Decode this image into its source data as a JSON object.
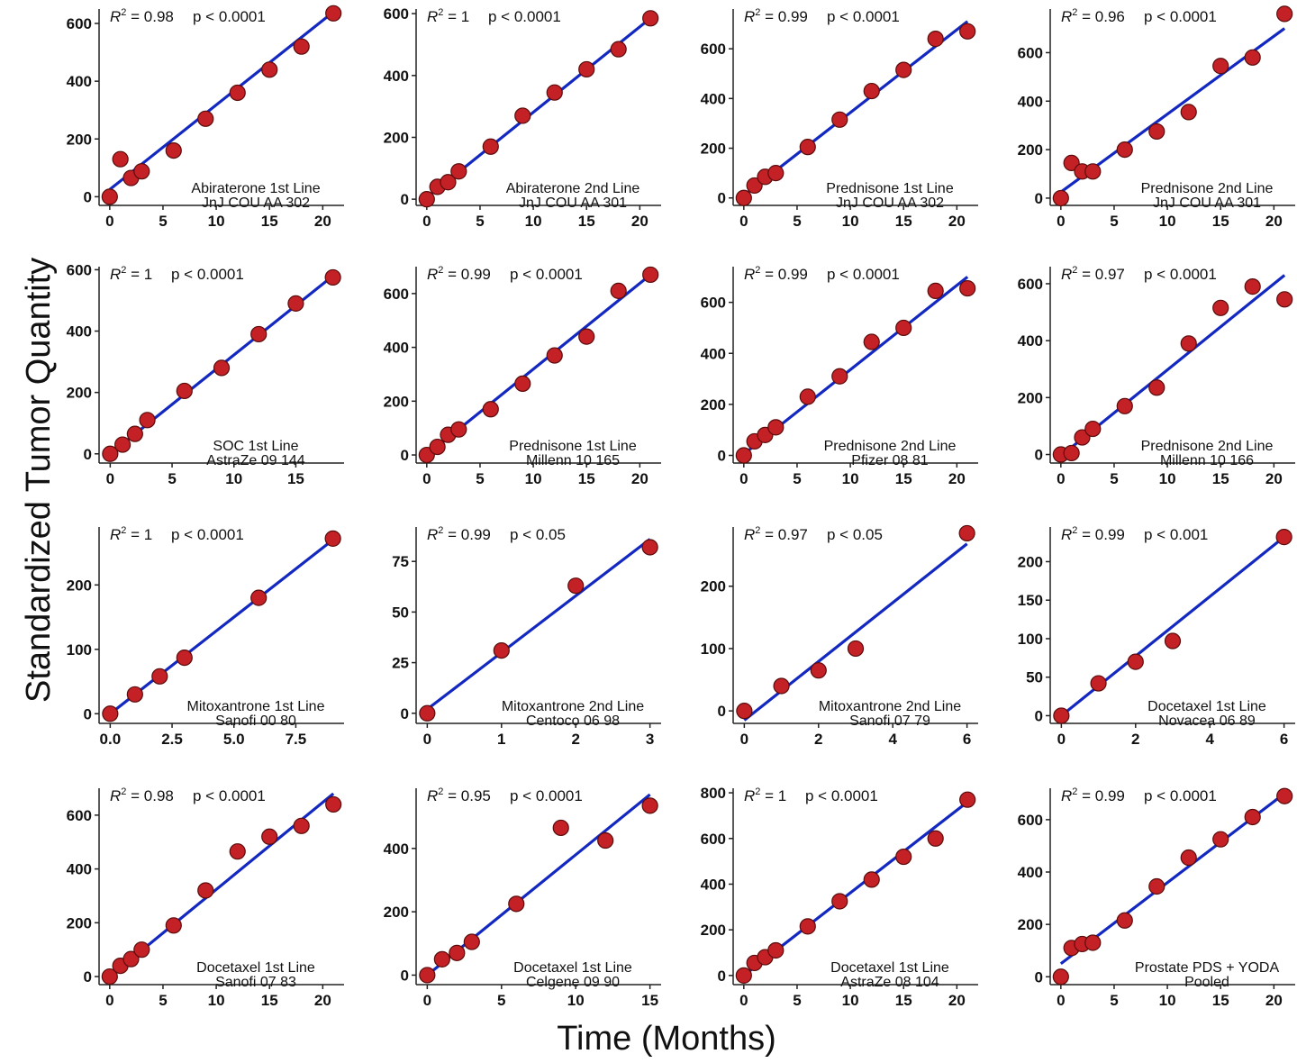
{
  "figure": {
    "ylabel": "Standardized Tumor Quantity",
    "xlabel": "Time (Months)",
    "colors": {
      "line": "#1328c0",
      "point_fill": "#c42126",
      "point_edge": "#5a0c0c",
      "axis": "#222222"
    }
  },
  "chart_data": [
    {
      "type": "scatter",
      "title": "Abiraterone 1st Line",
      "subtitle": "JnJ COU AA 302",
      "r2": "0.98",
      "p": "p < 0.0001",
      "xlim": [
        -1,
        22
      ],
      "ylim": [
        -30,
        650
      ],
      "xticks": [
        0,
        5,
        10,
        15,
        20
      ],
      "xtick_labels": [
        "0",
        "5",
        "10",
        "15",
        "20"
      ],
      "yticks": [
        0,
        200,
        400,
        600
      ],
      "ytick_labels": [
        "0",
        "200",
        "400",
        "600"
      ],
      "points": [
        [
          0,
          0
        ],
        [
          1,
          130
        ],
        [
          2,
          65
        ],
        [
          3,
          88
        ],
        [
          6,
          160
        ],
        [
          9,
          270
        ],
        [
          12,
          360
        ],
        [
          15,
          440
        ],
        [
          18,
          520
        ],
        [
          21,
          635
        ]
      ],
      "fit": [
        [
          0,
          25
        ],
        [
          21,
          640
        ]
      ]
    },
    {
      "type": "scatter",
      "title": "Abiraterone 2nd Line",
      "subtitle": "JnJ COU AA 301",
      "r2": "1",
      "p": "p < 0.0001",
      "xlim": [
        -1,
        22
      ],
      "ylim": [
        -20,
        615
      ],
      "xticks": [
        0,
        5,
        10,
        15,
        20
      ],
      "xtick_labels": [
        "0",
        "5",
        "10",
        "15",
        "20"
      ],
      "yticks": [
        0,
        200,
        400,
        600
      ],
      "ytick_labels": [
        "0",
        "200",
        "400",
        "600"
      ],
      "points": [
        [
          0,
          0
        ],
        [
          1,
          40
        ],
        [
          2,
          55
        ],
        [
          3,
          90
        ],
        [
          6,
          170
        ],
        [
          9,
          270
        ],
        [
          12,
          345
        ],
        [
          15,
          420
        ],
        [
          18,
          485
        ],
        [
          21,
          585
        ]
      ],
      "fit": [
        [
          0,
          5
        ],
        [
          21,
          585
        ]
      ]
    },
    {
      "type": "scatter",
      "title": "Prednisone 1st Line",
      "subtitle": "JnJ COU AA 302",
      "r2": "0.99",
      "p": "p < 0.0001",
      "xlim": [
        -1,
        22
      ],
      "ylim": [
        -30,
        760
      ],
      "xticks": [
        0,
        5,
        10,
        15,
        20
      ],
      "xtick_labels": [
        "0",
        "5",
        "10",
        "15",
        "20"
      ],
      "yticks": [
        0,
        200,
        400,
        600
      ],
      "ytick_labels": [
        "0",
        "200",
        "400",
        "600"
      ],
      "points": [
        [
          0,
          0
        ],
        [
          1,
          50
        ],
        [
          2,
          85
        ],
        [
          3,
          100
        ],
        [
          6,
          205
        ],
        [
          9,
          315
        ],
        [
          12,
          430
        ],
        [
          15,
          515
        ],
        [
          18,
          640
        ],
        [
          21,
          670
        ]
      ],
      "fit": [
        [
          0,
          10
        ],
        [
          21,
          710
        ]
      ]
    },
    {
      "type": "scatter",
      "title": "Prednisone 2nd Line",
      "subtitle": "JnJ COU AA 301",
      "r2": "0.96",
      "p": "p < 0.0001",
      "xlim": [
        -1,
        22
      ],
      "ylim": [
        -30,
        780
      ],
      "xticks": [
        0,
        5,
        10,
        15,
        20
      ],
      "xtick_labels": [
        "0",
        "5",
        "10",
        "15",
        "20"
      ],
      "yticks": [
        0,
        200,
        400,
        600
      ],
      "ytick_labels": [
        "0",
        "200",
        "400",
        "600"
      ],
      "points": [
        [
          0,
          0
        ],
        [
          1,
          145
        ],
        [
          2,
          110
        ],
        [
          3,
          110
        ],
        [
          6,
          200
        ],
        [
          9,
          275
        ],
        [
          12,
          355
        ],
        [
          15,
          545
        ],
        [
          18,
          580
        ],
        [
          21,
          760
        ]
      ],
      "fit": [
        [
          0,
          25
        ],
        [
          21,
          700
        ]
      ]
    },
    {
      "type": "scatter",
      "title": "SOC 1st Line",
      "subtitle": "AstraZe 09 144",
      "r2": "1",
      "p": "p < 0.0001",
      "xlim": [
        -0.9,
        18.9
      ],
      "ylim": [
        -30,
        610
      ],
      "xticks": [
        0,
        5,
        10,
        15
      ],
      "xtick_labels": [
        "0",
        "5",
        "10",
        "15"
      ],
      "yticks": [
        0,
        200,
        400,
        600
      ],
      "ytick_labels": [
        "0",
        "200",
        "400",
        "600"
      ],
      "points": [
        [
          0,
          0
        ],
        [
          1,
          30
        ],
        [
          2,
          65
        ],
        [
          3,
          110
        ],
        [
          6,
          205
        ],
        [
          9,
          280
        ],
        [
          12,
          390
        ],
        [
          15,
          490
        ],
        [
          18,
          575
        ]
      ],
      "fit": [
        [
          0,
          0
        ],
        [
          18,
          580
        ]
      ]
    },
    {
      "type": "scatter",
      "title": "Prednisone 1st Line",
      "subtitle": "Millenn 10 165",
      "r2": "0.99",
      "p": "p < 0.0001",
      "xlim": [
        -1,
        22
      ],
      "ylim": [
        -30,
        700
      ],
      "xticks": [
        0,
        5,
        10,
        15,
        20
      ],
      "xtick_labels": [
        "0",
        "5",
        "10",
        "15",
        "20"
      ],
      "yticks": [
        0,
        200,
        400,
        600
      ],
      "ytick_labels": [
        "0",
        "200",
        "400",
        "600"
      ],
      "points": [
        [
          0,
          0
        ],
        [
          1,
          30
        ],
        [
          2,
          75
        ],
        [
          3,
          95
        ],
        [
          6,
          170
        ],
        [
          9,
          265
        ],
        [
          12,
          370
        ],
        [
          15,
          440
        ],
        [
          18,
          610
        ],
        [
          21,
          670
        ]
      ],
      "fit": [
        [
          0,
          0
        ],
        [
          21,
          670
        ]
      ]
    },
    {
      "type": "scatter",
      "title": "Prednisone 2nd Line",
      "subtitle": "Pfizer 08 81",
      "r2": "0.99",
      "p": "p < 0.0001",
      "xlim": [
        -1,
        22
      ],
      "ylim": [
        -30,
        740
      ],
      "xticks": [
        0,
        5,
        10,
        15,
        20
      ],
      "xtick_labels": [
        "0",
        "5",
        "10",
        "15",
        "20"
      ],
      "yticks": [
        0,
        200,
        400,
        600
      ],
      "ytick_labels": [
        "0",
        "200",
        "400",
        "600"
      ],
      "points": [
        [
          0,
          0
        ],
        [
          1,
          55
        ],
        [
          2,
          80
        ],
        [
          3,
          110
        ],
        [
          6,
          230
        ],
        [
          9,
          310
        ],
        [
          12,
          445
        ],
        [
          15,
          500
        ],
        [
          18,
          645
        ],
        [
          21,
          655
        ]
      ],
      "fit": [
        [
          0,
          5
        ],
        [
          21,
          700
        ]
      ]
    },
    {
      "type": "scatter",
      "title": "Prednisone 2nd Line",
      "subtitle": "Millenn 10 166",
      "r2": "0.97",
      "p": "p < 0.0001",
      "xlim": [
        -1,
        22
      ],
      "ylim": [
        -30,
        660
      ],
      "xticks": [
        0,
        5,
        10,
        15,
        20
      ],
      "xtick_labels": [
        "0",
        "5",
        "10",
        "15",
        "20"
      ],
      "yticks": [
        0,
        200,
        400,
        600
      ],
      "ytick_labels": [
        "0",
        "200",
        "400",
        "600"
      ],
      "points": [
        [
          0,
          0
        ],
        [
          1,
          5
        ],
        [
          2,
          60
        ],
        [
          3,
          90
        ],
        [
          6,
          170
        ],
        [
          9,
          235
        ],
        [
          12,
          390
        ],
        [
          15,
          515
        ],
        [
          18,
          590
        ],
        [
          21,
          545
        ]
      ],
      "fit": [
        [
          0,
          -5
        ],
        [
          21,
          630
        ]
      ]
    },
    {
      "type": "scatter",
      "title": "Mitoxantrone 1st Line",
      "subtitle": "Sanofi 00 80",
      "r2": "1",
      "p": "p < 0.0001",
      "xlim": [
        -0.45,
        9.45
      ],
      "ylim": [
        -15,
        290
      ],
      "xticks": [
        0,
        2.5,
        5,
        7.5
      ],
      "xtick_labels": [
        "0.0",
        "2.5",
        "5.0",
        "7.5"
      ],
      "yticks": [
        0,
        100,
        200
      ],
      "ytick_labels": [
        "0",
        "100",
        "200"
      ],
      "points": [
        [
          0,
          0
        ],
        [
          1,
          30
        ],
        [
          2,
          58
        ],
        [
          3,
          87
        ],
        [
          6,
          180
        ],
        [
          9,
          272
        ]
      ],
      "fit": [
        [
          0,
          0
        ],
        [
          9,
          270
        ]
      ]
    },
    {
      "type": "scatter",
      "title": "Mitoxantrone 2nd Line",
      "subtitle": "Centoco 06 98",
      "r2": "0.99",
      "p": "p < 0.05",
      "xlim": [
        -0.15,
        3.15
      ],
      "ylim": [
        -5,
        92
      ],
      "xticks": [
        0,
        1,
        2,
        3
      ],
      "xtick_labels": [
        "0",
        "1",
        "2",
        "3"
      ],
      "yticks": [
        0,
        25,
        50,
        75
      ],
      "ytick_labels": [
        "0",
        "25",
        "50",
        "75"
      ],
      "points": [
        [
          0,
          0
        ],
        [
          1,
          31
        ],
        [
          2,
          63
        ],
        [
          3,
          82
        ]
      ],
      "fit": [
        [
          0,
          2
        ],
        [
          3,
          86
        ]
      ]
    },
    {
      "type": "scatter",
      "title": "Mitoxantrone 2nd Line",
      "subtitle": "Sanofi 07 79",
      "r2": "0.97",
      "p": "p < 0.05",
      "xlim": [
        -0.3,
        6.3
      ],
      "ylim": [
        -20,
        295
      ],
      "xticks": [
        0,
        2,
        4,
        6
      ],
      "xtick_labels": [
        "0",
        "2",
        "4",
        "6"
      ],
      "yticks": [
        0,
        100,
        200
      ],
      "ytick_labels": [
        "0",
        "100",
        "200"
      ],
      "points": [
        [
          0,
          0
        ],
        [
          1,
          40
        ],
        [
          2,
          65
        ],
        [
          3,
          100
        ],
        [
          6,
          285
        ]
      ],
      "fit": [
        [
          0,
          -15
        ],
        [
          6,
          268
        ]
      ]
    },
    {
      "type": "scatter",
      "title": "Docetaxel 1st Line",
      "subtitle": "Novacea 06 89",
      "r2": "0.99",
      "p": "p < 0.001",
      "xlim": [
        -0.3,
        6.3
      ],
      "ylim": [
        -10,
        245
      ],
      "xticks": [
        0,
        2,
        4,
        6
      ],
      "xtick_labels": [
        "0",
        "2",
        "4",
        "6"
      ],
      "yticks": [
        0,
        50,
        100,
        150,
        200
      ],
      "ytick_labels": [
        "0",
        "50",
        "100",
        "150",
        "200"
      ],
      "points": [
        [
          0,
          0
        ],
        [
          1,
          42
        ],
        [
          2,
          70
        ],
        [
          3,
          97
        ],
        [
          6,
          232
        ]
      ],
      "fit": [
        [
          0,
          0
        ],
        [
          6,
          232
        ]
      ]
    },
    {
      "type": "scatter",
      "title": "Docetaxel 1st Line",
      "subtitle": "Sanofi 07 83",
      "r2": "0.98",
      "p": "p < 0.0001",
      "xlim": [
        -1,
        22
      ],
      "ylim": [
        -30,
        700
      ],
      "xticks": [
        0,
        5,
        10,
        15,
        20
      ],
      "xtick_labels": [
        "0",
        "5",
        "10",
        "15",
        "20"
      ],
      "yticks": [
        0,
        200,
        400,
        600
      ],
      "ytick_labels": [
        "0",
        "200",
        "400",
        "600"
      ],
      "points": [
        [
          0,
          0
        ],
        [
          1,
          40
        ],
        [
          2,
          65
        ],
        [
          3,
          100
        ],
        [
          6,
          190
        ],
        [
          9,
          320
        ],
        [
          12,
          465
        ],
        [
          15,
          520
        ],
        [
          18,
          560
        ],
        [
          21,
          640
        ]
      ],
      "fit": [
        [
          0,
          0
        ],
        [
          21,
          680
        ]
      ]
    },
    {
      "type": "scatter",
      "title": "Docetaxel 1st Line",
      "subtitle": "Celgene 09 90",
      "r2": "0.95",
      "p": "p < 0.0001",
      "xlim": [
        -0.75,
        15.75
      ],
      "ylim": [
        -30,
        590
      ],
      "xticks": [
        0,
        5,
        10,
        15
      ],
      "xtick_labels": [
        "0",
        "5",
        "10",
        "15"
      ],
      "yticks": [
        0,
        200,
        400
      ],
      "ytick_labels": [
        "0",
        "200",
        "400"
      ],
      "points": [
        [
          0,
          0
        ],
        [
          1,
          50
        ],
        [
          2,
          70
        ],
        [
          3,
          105
        ],
        [
          6,
          225
        ],
        [
          9,
          465
        ],
        [
          12,
          425
        ],
        [
          15,
          535
        ]
      ],
      "fit": [
        [
          0,
          0
        ],
        [
          15,
          570
        ]
      ]
    },
    {
      "type": "scatter",
      "title": "Docetaxel 1st Line",
      "subtitle": "AstraZe 08 104",
      "r2": "1",
      "p": "p < 0.0001",
      "xlim": [
        -1,
        22
      ],
      "ylim": [
        -40,
        820
      ],
      "xticks": [
        0,
        5,
        10,
        15,
        20
      ],
      "xtick_labels": [
        "0",
        "5",
        "10",
        "15",
        "20"
      ],
      "yticks": [
        0,
        200,
        400,
        600,
        800
      ],
      "ytick_labels": [
        "0",
        "200",
        "400",
        "600",
        "800"
      ],
      "points": [
        [
          0,
          0
        ],
        [
          1,
          55
        ],
        [
          2,
          80
        ],
        [
          3,
          110
        ],
        [
          6,
          215
        ],
        [
          9,
          325
        ],
        [
          12,
          420
        ],
        [
          15,
          520
        ],
        [
          18,
          600
        ],
        [
          21,
          770
        ]
      ],
      "fit": [
        [
          0,
          0
        ],
        [
          21,
          760
        ]
      ]
    },
    {
      "type": "scatter",
      "title": "Prostate PDS + YODA",
      "subtitle": "Pooled",
      "r2": "0.99",
      "p": "p < 0.0001",
      "xlim": [
        -1,
        22
      ],
      "ylim": [
        -30,
        720
      ],
      "xticks": [
        0,
        5,
        10,
        15,
        20
      ],
      "xtick_labels": [
        "0",
        "5",
        "10",
        "15",
        "20"
      ],
      "yticks": [
        0,
        200,
        400,
        600
      ],
      "ytick_labels": [
        "0",
        "200",
        "400",
        "600"
      ],
      "points": [
        [
          0,
          0
        ],
        [
          1,
          110
        ],
        [
          2,
          125
        ],
        [
          3,
          130
        ],
        [
          6,
          215
        ],
        [
          9,
          345
        ],
        [
          12,
          455
        ],
        [
          15,
          525
        ],
        [
          18,
          610
        ],
        [
          21,
          690
        ]
      ],
      "fit": [
        [
          0,
          50
        ],
        [
          21,
          700
        ]
      ]
    }
  ]
}
